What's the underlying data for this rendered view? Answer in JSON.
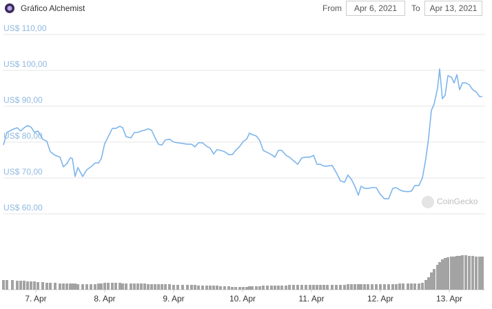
{
  "header": {
    "title": "Gráfico Alchemist",
    "from_label": "From",
    "from_date": "Apr 6, 2021",
    "to_label": "To",
    "to_date": "Apr 13, 2021"
  },
  "watermark": "CoinGecko",
  "chart_data": {
    "type": "line",
    "color": "#7cb5ec",
    "grid": true,
    "xlim": [
      6.53,
      13.52
    ],
    "ylim": [
      60,
      110
    ],
    "xticks": [
      {
        "value": 7,
        "label": "7. Apr"
      },
      {
        "value": 8,
        "label": "8. Apr"
      },
      {
        "value": 9,
        "label": "9. Apr"
      },
      {
        "value": 10,
        "label": "10. Apr"
      },
      {
        "value": 11,
        "label": "11. Apr"
      },
      {
        "value": 12,
        "label": "12. Apr"
      },
      {
        "value": 13,
        "label": "13. Apr"
      }
    ],
    "yticks": [
      {
        "value": 60,
        "label": "US$ 60,00"
      },
      {
        "value": 70,
        "label": "US$ 70,00"
      },
      {
        "value": 80,
        "label": "US$ 80,00"
      },
      {
        "value": 90,
        "label": "US$ 90,00"
      },
      {
        "value": 100,
        "label": "US$ 100,00"
      },
      {
        "value": 110,
        "label": "US$ 110,00"
      }
    ],
    "x": [
      6.53,
      6.58,
      6.66,
      6.73,
      6.78,
      6.83,
      6.88,
      6.93,
      6.98,
      7.03,
      7.1,
      7.16,
      7.21,
      7.28,
      7.35,
      7.4,
      7.45,
      7.5,
      7.53,
      7.57,
      7.61,
      7.68,
      7.74,
      7.8,
      7.86,
      7.91,
      7.95,
      8.0,
      8.05,
      8.11,
      8.16,
      8.22,
      8.26,
      8.31,
      8.38,
      8.43,
      8.48,
      8.53,
      8.58,
      8.63,
      8.68,
      8.73,
      8.78,
      8.83,
      8.88,
      8.94,
      9.0,
      9.06,
      9.13,
      9.2,
      9.26,
      9.31,
      9.36,
      9.42,
      9.48,
      9.53,
      9.58,
      9.63,
      9.68,
      9.74,
      9.8,
      9.85,
      9.9,
      9.96,
      10.01,
      10.06,
      10.1,
      10.14,
      10.2,
      10.25,
      10.3,
      10.36,
      10.42,
      10.47,
      10.52,
      10.57,
      10.63,
      10.68,
      10.74,
      10.8,
      10.86,
      10.92,
      10.98,
      11.03,
      11.08,
      11.13,
      11.18,
      11.23,
      11.3,
      11.36,
      11.42,
      11.48,
      11.53,
      11.58,
      11.63,
      11.68,
      11.72,
      11.77,
      11.82,
      11.88,
      11.94,
      12.0,
      12.06,
      12.12,
      12.18,
      12.23,
      12.28,
      12.33,
      12.4,
      12.45,
      12.5,
      12.56,
      12.61,
      12.66,
      12.7,
      12.74,
      12.78,
      12.83,
      12.86,
      12.9,
      12.94,
      12.98,
      13.03,
      13.07,
      13.11,
      13.15,
      13.19,
      13.24,
      13.29,
      13.34,
      13.39,
      13.44,
      13.48
    ],
    "values": [
      79.2,
      82.7,
      83.5,
      84.0,
      83.1,
      84.0,
      84.6,
      84.2,
      82.7,
      83.1,
      80.8,
      80.2,
      77.3,
      76.3,
      75.8,
      73.1,
      74.0,
      75.6,
      75.4,
      70.4,
      72.9,
      70.4,
      72.3,
      73.1,
      74.2,
      74.2,
      75.4,
      79.6,
      81.5,
      83.8,
      83.8,
      84.4,
      84.0,
      81.5,
      81.2,
      82.7,
      82.7,
      83.1,
      83.3,
      83.7,
      83.3,
      81.2,
      79.4,
      79.2,
      80.6,
      80.8,
      80.0,
      79.8,
      79.6,
      79.4,
      79.4,
      78.7,
      79.8,
      79.8,
      78.8,
      78.3,
      76.7,
      77.9,
      77.7,
      77.3,
      76.5,
      76.5,
      77.7,
      78.8,
      80.2,
      80.8,
      82.5,
      82.1,
      81.7,
      80.4,
      77.7,
      77.1,
      76.5,
      75.8,
      77.7,
      77.7,
      76.3,
      75.8,
      74.8,
      73.8,
      75.6,
      75.8,
      75.8,
      76.3,
      73.8,
      73.8,
      73.3,
      73.3,
      73.5,
      71.5,
      69.2,
      68.8,
      70.8,
      69.6,
      67.7,
      65.2,
      67.7,
      67.1,
      67.1,
      67.3,
      67.3,
      65.4,
      64.2,
      64.2,
      67.1,
      67.3,
      66.7,
      66.3,
      66.2,
      66.3,
      67.9,
      67.9,
      70.0,
      75.4,
      81.2,
      88.8,
      90.6,
      95.0,
      100.4,
      92.1,
      93.1,
      98.5,
      98.1,
      96.5,
      98.8,
      94.6,
      96.5,
      96.5,
      96.0,
      94.6,
      94.0,
      92.7,
      92.7
    ],
    "volume": {
      "color": "#a3a3a3",
      "values": [
        14,
        14,
        14,
        13,
        13,
        13,
        12,
        12,
        12,
        11,
        11,
        10,
        10,
        10,
        9,
        9,
        9,
        9,
        9,
        9,
        8,
        8,
        8,
        8,
        8,
        9,
        9,
        10,
        10,
        10,
        10,
        10,
        9,
        9,
        9,
        9,
        9,
        9,
        9,
        8,
        8,
        8,
        8,
        8,
        8,
        8,
        7,
        7,
        7,
        7,
        7,
        7,
        6,
        6,
        6,
        6,
        6,
        6,
        5,
        5,
        5,
        4,
        4,
        4,
        4,
        4,
        5,
        5,
        5,
        5,
        6,
        6,
        6,
        6,
        6,
        6,
        6,
        7,
        7,
        7,
        7,
        7,
        7,
        7,
        7,
        7,
        7,
        7,
        7,
        7,
        7,
        7,
        8,
        8,
        8,
        8,
        8,
        8,
        8,
        8,
        8,
        8,
        8,
        8,
        8,
        8,
        9,
        9,
        9,
        9,
        9,
        9,
        10,
        14,
        18,
        25,
        30,
        36,
        40,
        44,
        46,
        47,
        48,
        48,
        49,
        49,
        50,
        50,
        49,
        49,
        48,
        48,
        48
      ]
    }
  }
}
